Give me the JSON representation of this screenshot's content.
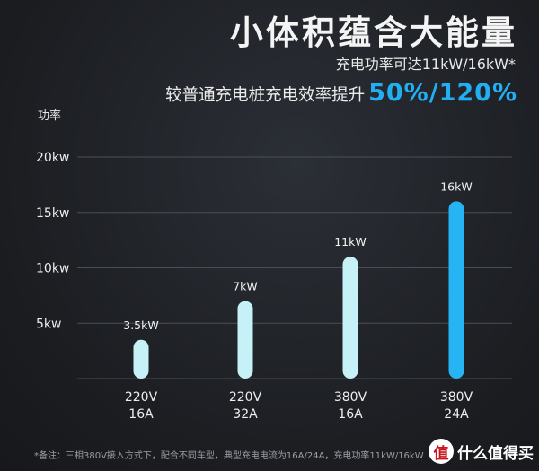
{
  "header": {
    "title": "小体积蕴含大能量",
    "subtitle": "充电功率可达11kW/16kW*",
    "compare_text": "较普通充电桩充电效率提升",
    "compare_highlight": "50%/120%"
  },
  "chart_data": {
    "type": "bar",
    "ylabel": "功率",
    "y_ticks": [
      "5kw",
      "10kw",
      "15kw",
      "20kw"
    ],
    "y_tick_values": [
      5,
      10,
      15,
      20
    ],
    "ylim": [
      0,
      25
    ],
    "grid": true,
    "categories": [
      [
        "220V",
        "16A"
      ],
      [
        "220V",
        "32A"
      ],
      [
        "380V",
        "16A"
      ],
      [
        "380V",
        "24A"
      ]
    ],
    "values": [
      3.5,
      7,
      11,
      16
    ],
    "data_labels": [
      "3.5kW",
      "7kW",
      "11kW",
      "16kW"
    ],
    "colors": [
      "#c6f1f7",
      "#c6f1f7",
      "#c6f1f7",
      "#26b4f4"
    ]
  },
  "footnote": "*备注：三相380V接入方式下，配合不同车型，典型充电电流为16A/24A，充电功率11kW/16kW",
  "watermark": {
    "icon": "值",
    "text": "什么值得买"
  }
}
